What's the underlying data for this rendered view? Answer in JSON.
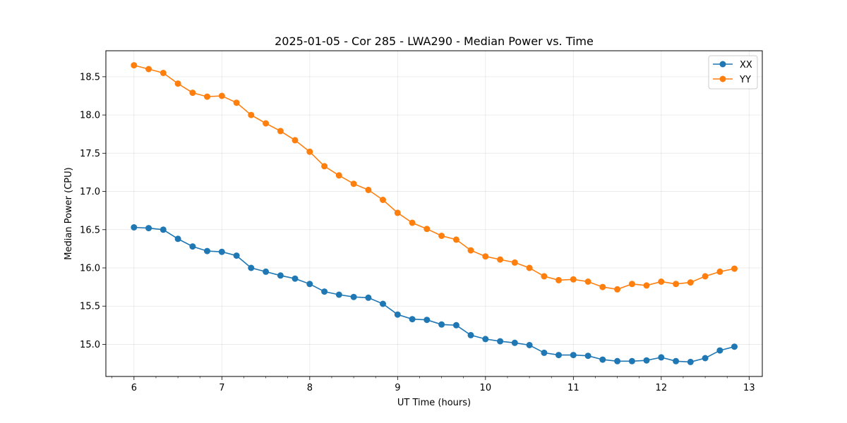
{
  "chart_data": {
    "type": "line",
    "title": "2025-01-05 - Cor 285 - LWA290 - Median Power vs. Time",
    "xlabel": "UT Time (hours)",
    "ylabel": "Median Power (CPU)",
    "xlim": [
      5.68,
      13.15
    ],
    "ylim": [
      14.58,
      18.84
    ],
    "xticks": [
      6,
      7,
      8,
      9,
      10,
      11,
      12,
      13
    ],
    "xtick_labels": [
      "6",
      "7",
      "8",
      "9",
      "10",
      "11",
      "12",
      "13"
    ],
    "yticks": [
      15.0,
      15.5,
      16.0,
      16.5,
      17.0,
      17.5,
      18.0,
      18.5
    ],
    "ytick_labels": [
      "15.0",
      "15.5",
      "16.0",
      "16.5",
      "17.0",
      "17.5",
      "18.0",
      "18.5"
    ],
    "grid": true,
    "legend_position": "top-right",
    "x": [
      6.0,
      6.167,
      6.333,
      6.5,
      6.667,
      6.833,
      7.0,
      7.167,
      7.333,
      7.5,
      7.667,
      7.833,
      8.0,
      8.167,
      8.333,
      8.5,
      8.667,
      8.833,
      9.0,
      9.167,
      9.333,
      9.5,
      9.667,
      9.833,
      10.0,
      10.167,
      10.333,
      10.5,
      10.667,
      10.833,
      11.0,
      11.167,
      11.333,
      11.5,
      11.667,
      11.833,
      12.0,
      12.167,
      12.333,
      12.5,
      12.667,
      12.833
    ],
    "series": [
      {
        "name": "XX",
        "color": "#1f77b4",
        "values": [
          16.53,
          16.52,
          16.5,
          16.38,
          16.28,
          16.22,
          16.21,
          16.16,
          16.0,
          15.95,
          15.9,
          15.86,
          15.79,
          15.69,
          15.65,
          15.62,
          15.61,
          15.53,
          15.39,
          15.33,
          15.32,
          15.26,
          15.25,
          15.12,
          15.07,
          15.04,
          15.02,
          14.99,
          14.89,
          14.86,
          14.86,
          14.85,
          14.8,
          14.78,
          14.78,
          14.79,
          14.83,
          14.78,
          14.77,
          14.82,
          14.92,
          14.97
        ]
      },
      {
        "name": "YY",
        "color": "#ff7f0e",
        "values": [
          18.65,
          18.6,
          18.55,
          18.41,
          18.29,
          18.24,
          18.25,
          18.16,
          18.0,
          17.89,
          17.79,
          17.67,
          17.52,
          17.33,
          17.21,
          17.1,
          17.02,
          16.89,
          16.72,
          16.59,
          16.51,
          16.42,
          16.37,
          16.23,
          16.15,
          16.11,
          16.07,
          16.0,
          15.89,
          15.84,
          15.85,
          15.82,
          15.75,
          15.72,
          15.79,
          15.77,
          15.82,
          15.79,
          15.81,
          15.89,
          15.95,
          15.99
        ]
      }
    ]
  }
}
